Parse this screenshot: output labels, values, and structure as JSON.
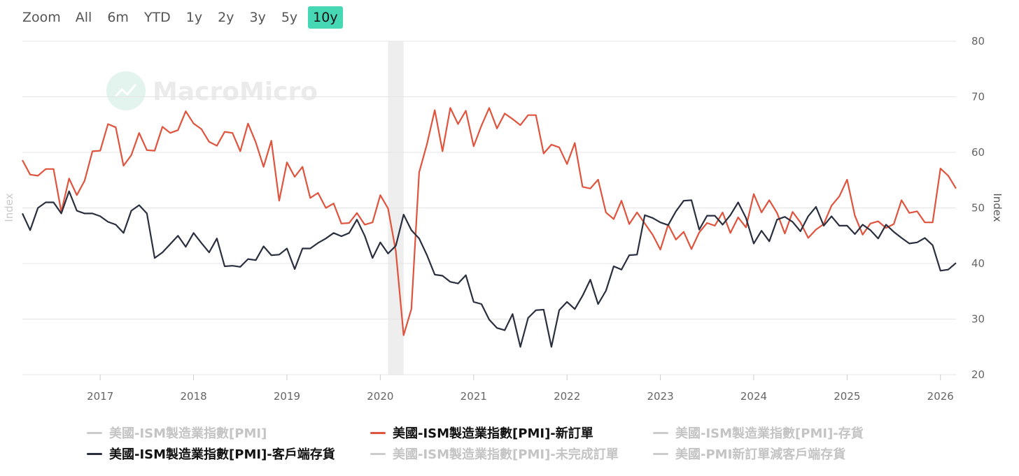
{
  "range_selector": {
    "label": "Zoom",
    "buttons": [
      {
        "label": "All",
        "active": false
      },
      {
        "label": "6m",
        "active": false
      },
      {
        "label": "YTD",
        "active": false
      },
      {
        "label": "1y",
        "active": false
      },
      {
        "label": "2y",
        "active": false
      },
      {
        "label": "3y",
        "active": false
      },
      {
        "label": "5y",
        "active": false
      },
      {
        "label": "10y",
        "active": true
      }
    ]
  },
  "watermark": "MacroMicro",
  "colors": {
    "accent": "#46d7b4",
    "new_orders": "#e0533d",
    "customer_inventories": "#2a2f3f",
    "disabled": "#cccccc",
    "recession_band": "#eeeeee",
    "watermark": "#ededed"
  },
  "chart_data": {
    "type": "line",
    "x_ticks": [
      "2017",
      "2018",
      "2019",
      "2020",
      "2021",
      "2022",
      "2023",
      "2024",
      "2025",
      "2026"
    ],
    "y_left": {
      "title": "Index",
      "range": [
        20,
        80
      ],
      "ticks": []
    },
    "y_right": {
      "title": "Index",
      "range": [
        20,
        80
      ],
      "ticks": [
        "20",
        "30",
        "40",
        "50",
        "60",
        "70",
        "80"
      ]
    },
    "x_range": [
      "2016-03",
      "2026-03"
    ],
    "grid": true,
    "recession_shading": {
      "start": "2020-02",
      "end": "2020-04"
    },
    "series": [
      {
        "name": "美國-ISM製造業指數[PMI]-新訂單",
        "visible": true,
        "color": "#e0533d",
        "start": "2016-03",
        "values": [
          58.6,
          56.0,
          55.8,
          57.0,
          57.0,
          49.3,
          55.3,
          52.3,
          54.9,
          60.2,
          60.3,
          65.1,
          64.5,
          57.6,
          59.5,
          63.5,
          60.4,
          60.3,
          64.6,
          63.5,
          64.0,
          67.4,
          65.2,
          64.2,
          61.9,
          61.2,
          63.7,
          63.5,
          60.2,
          65.2,
          61.8,
          57.4,
          62.1,
          51.3,
          58.2,
          55.6,
          57.4,
          51.8,
          52.7,
          50.0,
          50.8,
          47.2,
          47.3,
          49.1,
          47.0,
          47.4,
          52.3,
          49.9,
          42.2,
          27.1,
          31.8,
          56.4,
          61.5,
          67.6,
          60.2,
          68.0,
          65.1,
          67.5,
          61.1,
          64.8,
          68.0,
          64.3,
          67.0,
          66.0,
          64.9,
          66.7,
          66.7,
          59.8,
          61.4,
          60.9,
          57.9,
          61.7,
          53.8,
          53.5,
          55.1,
          49.2,
          48.0,
          51.3,
          47.1,
          49.2,
          47.2,
          45.2,
          42.5,
          47.0,
          44.3,
          45.7,
          42.6,
          45.6,
          47.3,
          46.8,
          49.2,
          45.5,
          48.3,
          46.5,
          52.5,
          49.2,
          51.4,
          49.1,
          45.4,
          49.3,
          47.4,
          44.6,
          46.1,
          47.1,
          50.4,
          52.1,
          55.1,
          48.6,
          45.2,
          47.2,
          47.6,
          46.4,
          47.1,
          51.4,
          49.1,
          49.4,
          47.4,
          47.4,
          57.1,
          55.8,
          53.5
        ]
      },
      {
        "name": "美國-ISM製造業指數[PMI]-客戶端存貨",
        "visible": true,
        "color": "#2a2f3f",
        "start": "2016-03",
        "values": [
          49.0,
          46.0,
          50.0,
          51.0,
          51.0,
          49.0,
          53.0,
          49.5,
          49.0,
          49.0,
          48.5,
          47.5,
          47.0,
          45.5,
          49.5,
          50.5,
          49.0,
          41.0,
          42.0,
          43.5,
          45.0,
          43.0,
          45.5,
          43.7,
          42.0,
          44.5,
          39.5,
          39.6,
          39.4,
          40.8,
          40.6,
          43.1,
          41.5,
          41.6,
          42.7,
          39.0,
          42.7,
          42.7,
          43.7,
          44.5,
          45.5,
          44.9,
          45.5,
          47.9,
          45.0,
          41.0,
          43.8,
          41.8,
          43.2,
          48.8,
          46.0,
          44.5,
          41.5,
          38.0,
          37.8,
          36.7,
          36.4,
          37.9,
          33.1,
          32.7,
          29.9,
          28.4,
          28.0,
          30.9,
          25.0,
          30.2,
          31.6,
          31.7,
          25.0,
          31.6,
          33.1,
          31.8,
          34.2,
          37.1,
          32.7,
          35.1,
          39.5,
          38.9,
          41.5,
          41.6,
          48.7,
          48.2,
          47.4,
          46.9,
          49.4,
          51.3,
          51.4,
          46.1,
          48.6,
          48.6,
          47.0,
          48.7,
          51.0,
          48.2,
          43.6,
          45.9,
          44.0,
          47.9,
          48.4,
          47.5,
          45.8,
          48.5,
          50.2,
          46.8,
          48.5,
          46.8,
          46.8,
          45.3,
          47.0,
          46.0,
          44.5,
          47.0,
          45.7,
          44.6,
          43.6,
          43.8,
          44.6,
          43.3,
          38.7,
          38.9,
          40.1
        ]
      },
      {
        "name": "美國-ISM製造業指數[PMI]",
        "visible": false
      },
      {
        "name": "美國-ISM製造業指數[PMI]-存貨",
        "visible": false
      },
      {
        "name": "美國-ISM製造業指數[PMI]-未完成訂單",
        "visible": false
      },
      {
        "name": "美國-PMI新訂單減客戶端存貨",
        "visible": false
      }
    ]
  },
  "legend": [
    {
      "label": "美國-ISM製造業指數[PMI]",
      "series": 2,
      "visible": false
    },
    {
      "label": "美國-ISM製造業指數[PMI]-新訂單",
      "series": 0,
      "visible": true
    },
    {
      "label": "美國-ISM製造業指數[PMI]-存貨",
      "series": 3,
      "visible": false
    },
    {
      "label": "美國-ISM製造業指數[PMI]-客戶端存貨",
      "series": 1,
      "visible": true
    },
    {
      "label": "美國-ISM製造業指數[PMI]-未完成訂單",
      "series": 4,
      "visible": false
    },
    {
      "label": "美國-PMI新訂單減客戶端存貨",
      "series": 5,
      "visible": false
    }
  ]
}
